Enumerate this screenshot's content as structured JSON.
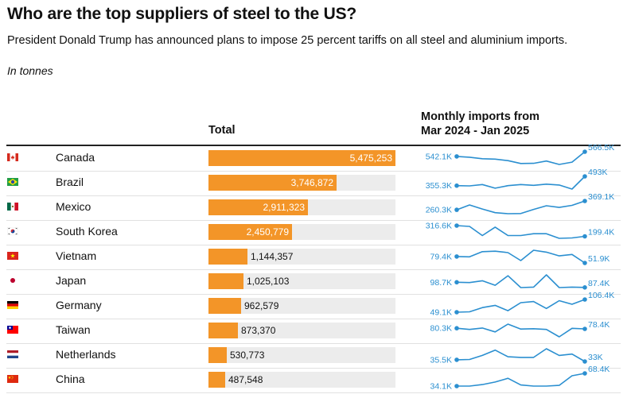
{
  "header": {
    "title": "Who are the top suppliers of steel to the US?",
    "subtitle": "President Donald Trump has announced plans to impose 25 percent tariffs on all steel and aluminium imports.",
    "unit": "In tonnes",
    "total_label": "Total",
    "monthly_label_line1": "Monthly imports from",
    "monthly_label_line2": "Mar 2024 - Jan 2025"
  },
  "colors": {
    "bar": "#f39528",
    "track": "#ececec",
    "spark": "#2b8fd0"
  },
  "chart_data": {
    "type": "bar",
    "title": "Who are the top suppliers of steel to the US?",
    "xlabel": "Total",
    "unit": "tonnes",
    "xlim": [
      0,
      5475253
    ],
    "categories": [
      "Canada",
      "Brazil",
      "Mexico",
      "South Korea",
      "Vietnam",
      "Japan",
      "Germany",
      "Taiwan",
      "Netherlands",
      "China"
    ],
    "flags": [
      "canada-flag-icon",
      "brazil-flag-icon",
      "mexico-flag-icon",
      "south-korea-flag-icon",
      "vietnam-flag-icon",
      "japan-flag-icon",
      "germany-flag-icon",
      "taiwan-flag-icon",
      "netherlands-flag-icon",
      "china-flag-icon"
    ],
    "values": [
      5475253,
      3746872,
      2911323,
      2450779,
      1144357,
      1025103,
      962579,
      873370,
      530773,
      487548
    ],
    "value_labels": [
      "5,475,253",
      "3,746,872",
      "2,911,323",
      "2,450,779",
      "1,144,357",
      "1,025,103",
      "962,579",
      "873,370",
      "530,773",
      "487,548"
    ],
    "sparklines": {
      "type": "line",
      "title": "Monthly imports from Mar 2024 - Jan 2025",
      "months": [
        "Mar 2024",
        "Apr 2024",
        "May 2024",
        "Jun 2024",
        "Jul 2024",
        "Aug 2024",
        "Sep 2024",
        "Oct 2024",
        "Nov 2024",
        "Dec 2024",
        "Jan 2025"
      ],
      "series": [
        {
          "name": "Canada",
          "start_label": "542.1K",
          "end_label": "566.5K",
          "values": [
            542.1,
            538,
            530,
            528,
            520,
            505,
            506,
            518,
            500,
            512,
            566.5
          ]
        },
        {
          "name": "Brazil",
          "start_label": "355.3K",
          "end_label": "493K",
          "values": [
            355.3,
            352,
            372,
            318,
            355,
            372,
            360,
            378,
            365,
            305,
            493
          ]
        },
        {
          "name": "Mexico",
          "start_label": "260.3K",
          "end_label": "369.1K",
          "values": [
            260.3,
            320,
            270,
            225,
            212,
            214,
            265,
            310,
            290,
            315,
            369.1
          ]
        },
        {
          "name": "South Korea",
          "start_label": "316.6K",
          "end_label": "199.4K",
          "values": [
            316.6,
            308,
            208,
            300,
            208,
            208,
            228,
            228,
            178,
            182,
            199.4
          ]
        },
        {
          "name": "Vietnam",
          "start_label": "79.4K",
          "end_label": "51.9K",
          "values": [
            79.4,
            78,
            100,
            102,
            96,
            62,
            106,
            98,
            82,
            88,
            51.9
          ]
        },
        {
          "name": "Japan",
          "start_label": "98.7K",
          "end_label": "87.4K",
          "values": [
            98.7,
            98,
            102,
            92,
            113,
            87,
            88,
            115,
            87,
            88,
            87.4
          ]
        },
        {
          "name": "Germany",
          "start_label": "49.1K",
          "end_label": "106.4K",
          "values": [
            49.1,
            51,
            70,
            80,
            56,
            92,
            97,
            66,
            101,
            85,
            106.4
          ]
        },
        {
          "name": "Taiwan",
          "start_label": "80.3K",
          "end_label": "78.4K",
          "values": [
            80.3,
            77,
            81,
            70,
            92,
            78,
            79,
            77,
            56,
            80,
            78.4
          ]
        },
        {
          "name": "Netherlands",
          "start_label": "35.5K",
          "end_label": "33K",
          "values": [
            35.5,
            36,
            42,
            50,
            40,
            39,
            39,
            52,
            42,
            44,
            33
          ]
        },
        {
          "name": "China",
          "start_label": "34.1K",
          "end_label": "68.4K",
          "values": [
            34.1,
            34,
            38,
            45,
            55,
            37,
            34,
            34,
            36,
            62,
            68.4
          ]
        }
      ]
    }
  }
}
